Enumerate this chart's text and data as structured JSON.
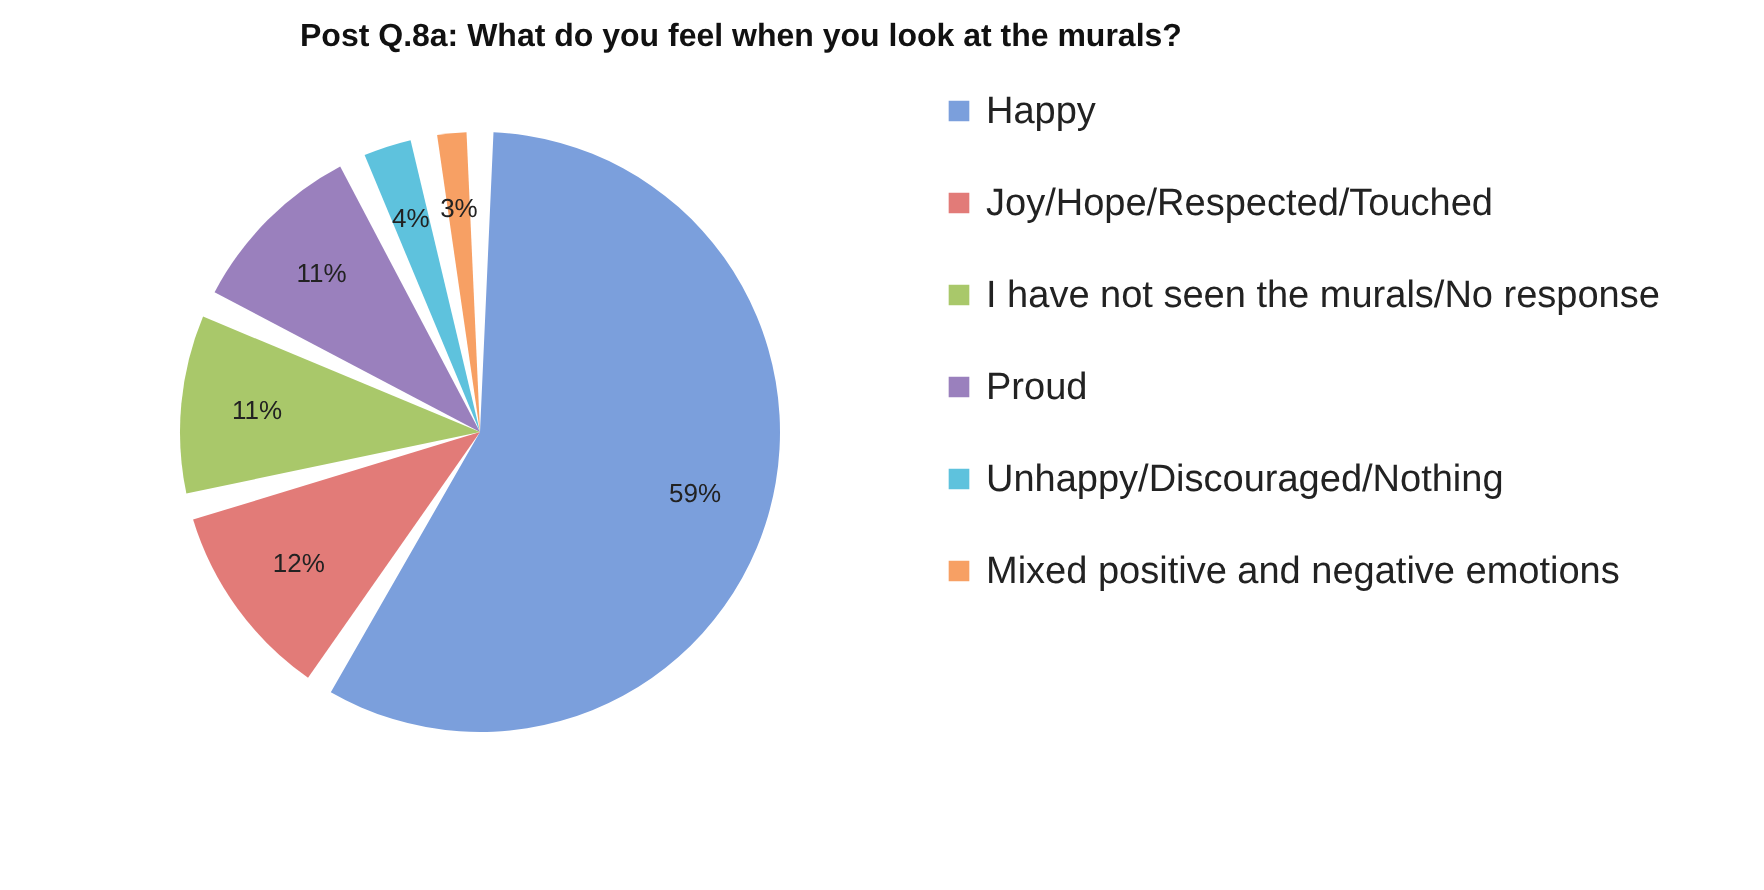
{
  "chart_data": {
    "type": "pie",
    "title": "Post Q.8a: What do you feel when you look at the murals?",
    "categories": [
      "Happy",
      "Joy/Hope/Respected/Touched",
      "I have not seen the murals/No response",
      "Proud",
      "Unhappy/Discouraged/Nothing",
      "Mixed positive and negative emotions"
    ],
    "values": [
      59,
      12,
      11,
      11,
      4,
      3
    ],
    "colors": [
      "#7b9fdc",
      "#e27b78",
      "#a9c86a",
      "#9a80bd",
      "#5ec2dd",
      "#f7a064"
    ],
    "value_labels": [
      "59%",
      "12%",
      "11%",
      "11%",
      "4%",
      "3%"
    ],
    "legend": "right"
  }
}
